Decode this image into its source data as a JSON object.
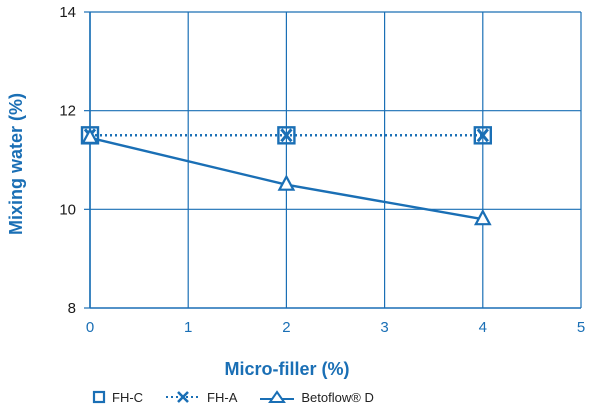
{
  "chart_data": {
    "type": "line",
    "xlabel": "Micro-filler (%)",
    "ylabel": "Mixing water (%)",
    "xlim": [
      0,
      5
    ],
    "ylim": [
      8,
      14
    ],
    "x_ticks": [
      "0",
      "1",
      "2",
      "3",
      "4",
      "5"
    ],
    "y_ticks": [
      "8",
      "10",
      "12",
      "14"
    ],
    "grid": true,
    "legend_position": "bottom-left",
    "colors": {
      "primary": "#1a6fb5",
      "text": "#1a1a1a"
    },
    "series": [
      {
        "name": "FH-C",
        "marker": "square",
        "line": "dotted",
        "x": [
          0,
          2,
          4
        ],
        "y": [
          11.5,
          11.5,
          11.5
        ]
      },
      {
        "name": "FH-A",
        "marker": "x",
        "line": "dotted",
        "x": [
          0,
          2,
          4
        ],
        "y": [
          11.5,
          11.5,
          11.5
        ]
      },
      {
        "name": "Betoflow® D",
        "marker": "triangle",
        "line": "solid",
        "x": [
          0,
          2,
          4
        ],
        "y": [
          11.45,
          10.5,
          9.8
        ]
      }
    ]
  }
}
